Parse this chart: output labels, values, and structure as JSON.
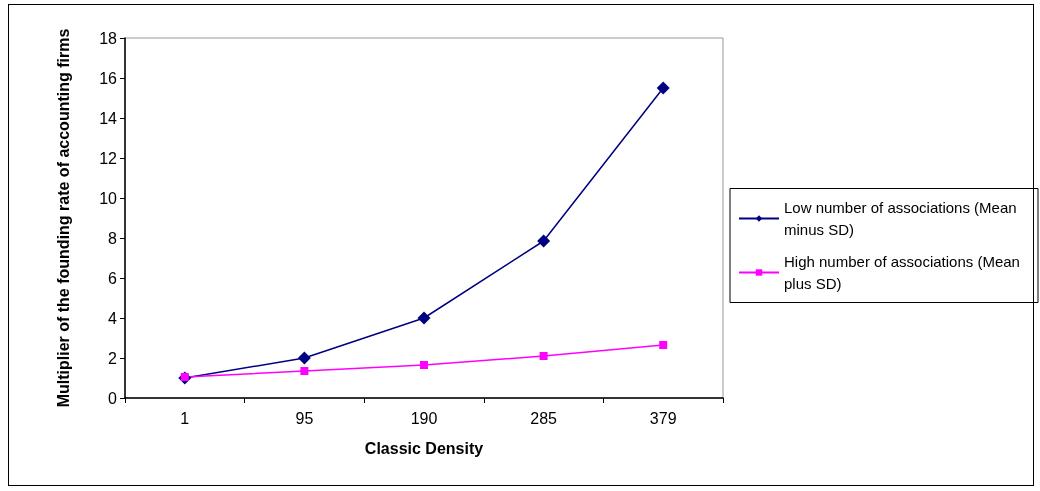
{
  "chart_data": {
    "type": "line",
    "xlabel": "Classic Density",
    "ylabel": "Multiplier of the founding rate of accounting firms",
    "categories": [
      "1",
      "95",
      "190",
      "285",
      "379"
    ],
    "series": [
      {
        "name": "Low number of associations (Mean minus SD)",
        "color": "#000080",
        "marker": "diamond",
        "values": [
          1,
          2,
          4,
          7.85,
          15.5
        ]
      },
      {
        "name": "High number of associations (Mean plus SD)",
        "color": "#ff00ff",
        "marker": "square",
        "values": [
          1.05,
          1.35,
          1.65,
          2.1,
          2.65
        ]
      }
    ],
    "ylim": [
      0,
      18
    ],
    "yticks": [
      0,
      2,
      4,
      6,
      8,
      10,
      12,
      14,
      16,
      18
    ],
    "grid": false,
    "legend": "right",
    "line_style": "solid"
  }
}
